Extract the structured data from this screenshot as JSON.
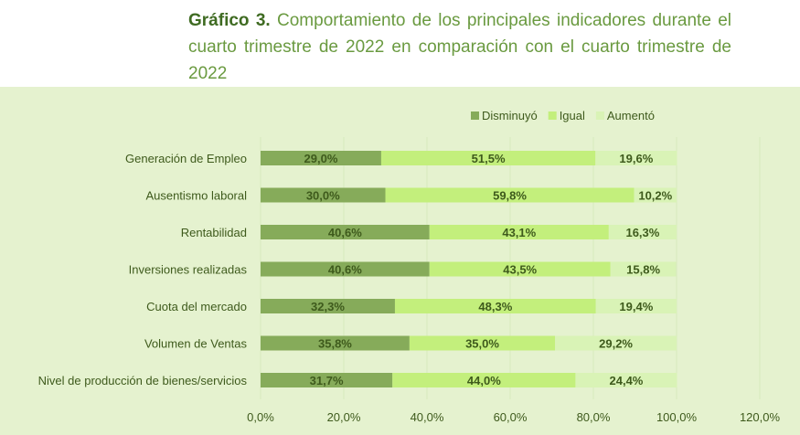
{
  "title": {
    "bold": "Gráfico 3.",
    "line1": "Comportamiento de los principales indicadores durante el",
    "line2": "cuarto trimestre de 2022 en comparación con el cuarto trimestre de 2022"
  },
  "chart_data": {
    "type": "bar",
    "orientation": "horizontal",
    "stacked": true,
    "categories": [
      "Generación de Empleo",
      "Ausentismo laboral",
      "Rentabilidad",
      "Inversiones realizadas",
      "Cuota del mercado",
      "Volumen de Ventas",
      "Nivel de producción de bienes/servicios"
    ],
    "series": [
      {
        "name": "Disminuyó",
        "color": "#86ab5a",
        "values": [
          29.0,
          30.0,
          40.6,
          40.6,
          32.3,
          35.8,
          31.7
        ]
      },
      {
        "name": "Igual",
        "color": "#c3ef7c",
        "values": [
          51.5,
          59.8,
          43.1,
          43.5,
          48.3,
          35.0,
          44.0
        ]
      },
      {
        "name": "Aumentó",
        "color": "#d9f3b6",
        "values": [
          19.6,
          10.2,
          16.3,
          15.8,
          19.4,
          29.2,
          24.4
        ]
      }
    ],
    "xlim": [
      0,
      120
    ],
    "xticks": [
      "0,0%",
      "20,0%",
      "40,0%",
      "60,0%",
      "80,0%",
      "100,0%",
      "120,0%"
    ],
    "legend": "top-right",
    "grid": true
  }
}
